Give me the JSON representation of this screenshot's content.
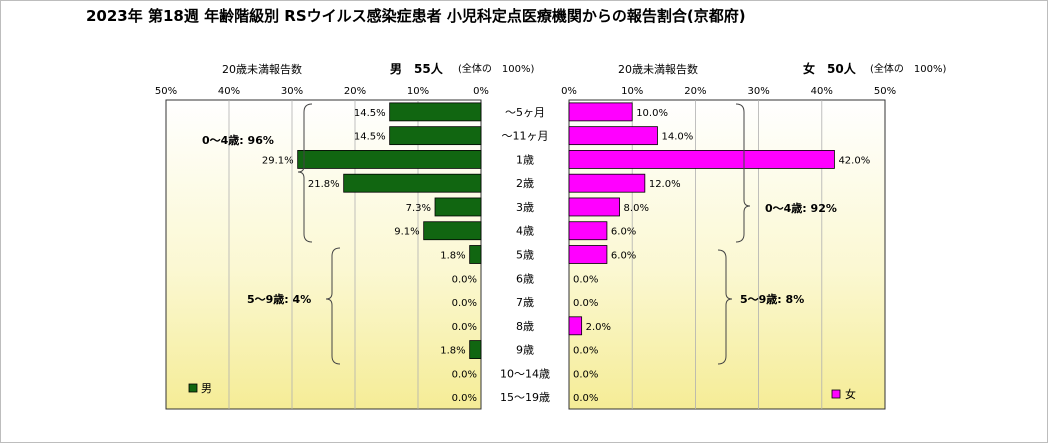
{
  "title": "2023年 第18週 年齢階級別 RSウイルス感染症患者 小児科定点医療機関からの報告割合(京都府)",
  "headers": {
    "under20_left": "20歳未満報告数",
    "under20_right": "20歳未満報告数",
    "male_count": "男　55人",
    "female_count": "女　50人",
    "total_note_left": "(全体の　100%)",
    "total_note_right": "(全体の　100%)"
  },
  "chart_data": {
    "type": "bar",
    "orientation": "horizontal",
    "layout": "population-pyramid",
    "categories": [
      "～5ヶ月",
      "～11ヶ月",
      "1歳",
      "2歳",
      "3歳",
      "4歳",
      "5歳",
      "6歳",
      "7歳",
      "8歳",
      "9歳",
      "10～14歳",
      "15～19歳"
    ],
    "series": [
      {
        "name": "男",
        "color": "#116611",
        "values": [
          14.5,
          14.5,
          29.1,
          21.8,
          7.3,
          9.1,
          1.8,
          0.0,
          0.0,
          0.0,
          1.8,
          0.0,
          0.0
        ],
        "labels": [
          "14.5%",
          "14.5%",
          "29.1%",
          "21.8%",
          "7.3%",
          "9.1%",
          "1.8%",
          "0.0%",
          "0.0%",
          "0.0%",
          "1.8%",
          "0.0%",
          "0.0%"
        ]
      },
      {
        "name": "女",
        "color": "#ff00ff",
        "values": [
          10.0,
          14.0,
          42.0,
          12.0,
          8.0,
          6.0,
          6.0,
          0.0,
          0.0,
          2.0,
          0.0,
          0.0,
          0.0
        ],
        "labels": [
          "10.0%",
          "14.0%",
          "42.0%",
          "12.0%",
          "8.0%",
          "6.0%",
          "6.0%",
          "0.0%",
          "0.0%",
          "2.0%",
          "0.0%",
          "0.0%",
          "0.0%"
        ]
      }
    ],
    "xlim": [
      0,
      50
    ],
    "ticks": [
      "50%",
      "40%",
      "30%",
      "20%",
      "10%",
      "0%",
      "10%",
      "20%",
      "30%",
      "40%",
      "50%"
    ],
    "grid": true,
    "groups": {
      "male_0_4": "0～4歳: 96%",
      "male_5_9": "5～9歳: 4%",
      "female_0_4": "0～4歳: 92%",
      "female_5_9": "5～9歳: 8%"
    },
    "legend": {
      "male": "男",
      "female": "女",
      "placement": "bottom corners"
    }
  }
}
